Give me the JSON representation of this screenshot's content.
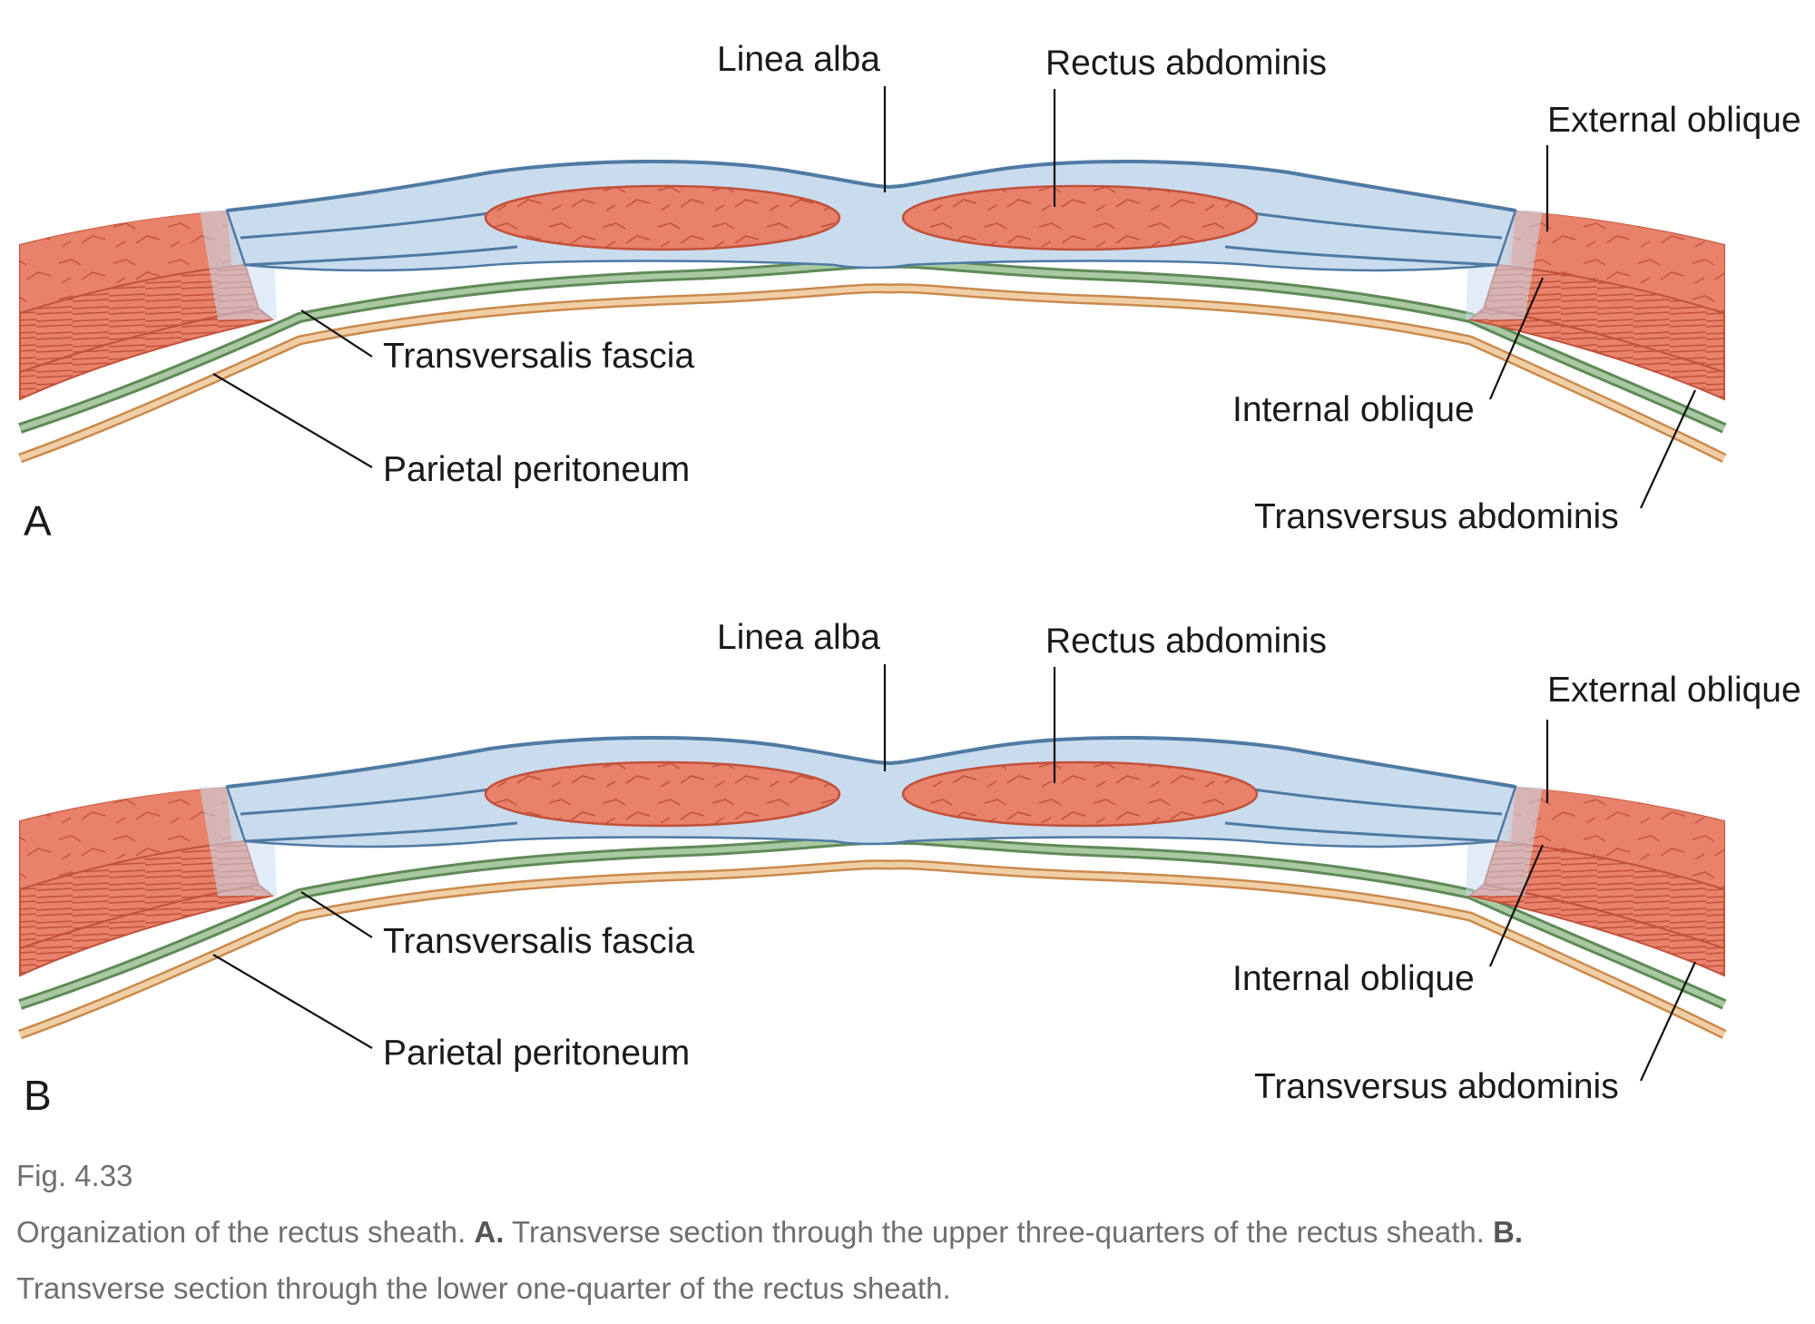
{
  "panels": [
    {
      "letter": "A",
      "labels": {
        "linea_alba": "Linea alba",
        "rectus_abdominis": "Rectus abdominis",
        "external_oblique": "External oblique",
        "transversalis_fascia": "Transversalis fascia",
        "internal_oblique": "Internal oblique",
        "parietal_peritoneum": "Parietal peritoneum",
        "transversus_abdominis": "Transversus abdominis"
      }
    },
    {
      "letter": "B",
      "labels": {
        "linea_alba": "Linea alba",
        "rectus_abdominis": "Rectus abdominis",
        "external_oblique": "External oblique",
        "transversalis_fascia": "Transversalis fascia",
        "internal_oblique": "Internal oblique",
        "parietal_peritoneum": "Parietal peritoneum",
        "transversus_abdominis": "Transversus abdominis"
      }
    }
  ],
  "caption": {
    "fig_number": "Fig. 4.33",
    "text_1": "Organization of the rectus sheath. ",
    "bold_a": "A.",
    "text_2": " Transverse section through the upper three-quarters of the rectus sheath. ",
    "bold_b": "B.",
    "text_3": "Transverse section through the lower one-quarter of the rectus sheath."
  },
  "colors": {
    "muscle": "#e8826a",
    "muscle_edge": "#c2513c",
    "aponeurosis": "#c9dcee",
    "aponeurosis_edge": "#4f7aa3",
    "fascia": "#8fb58a",
    "peritoneum": "#e8b98a"
  }
}
